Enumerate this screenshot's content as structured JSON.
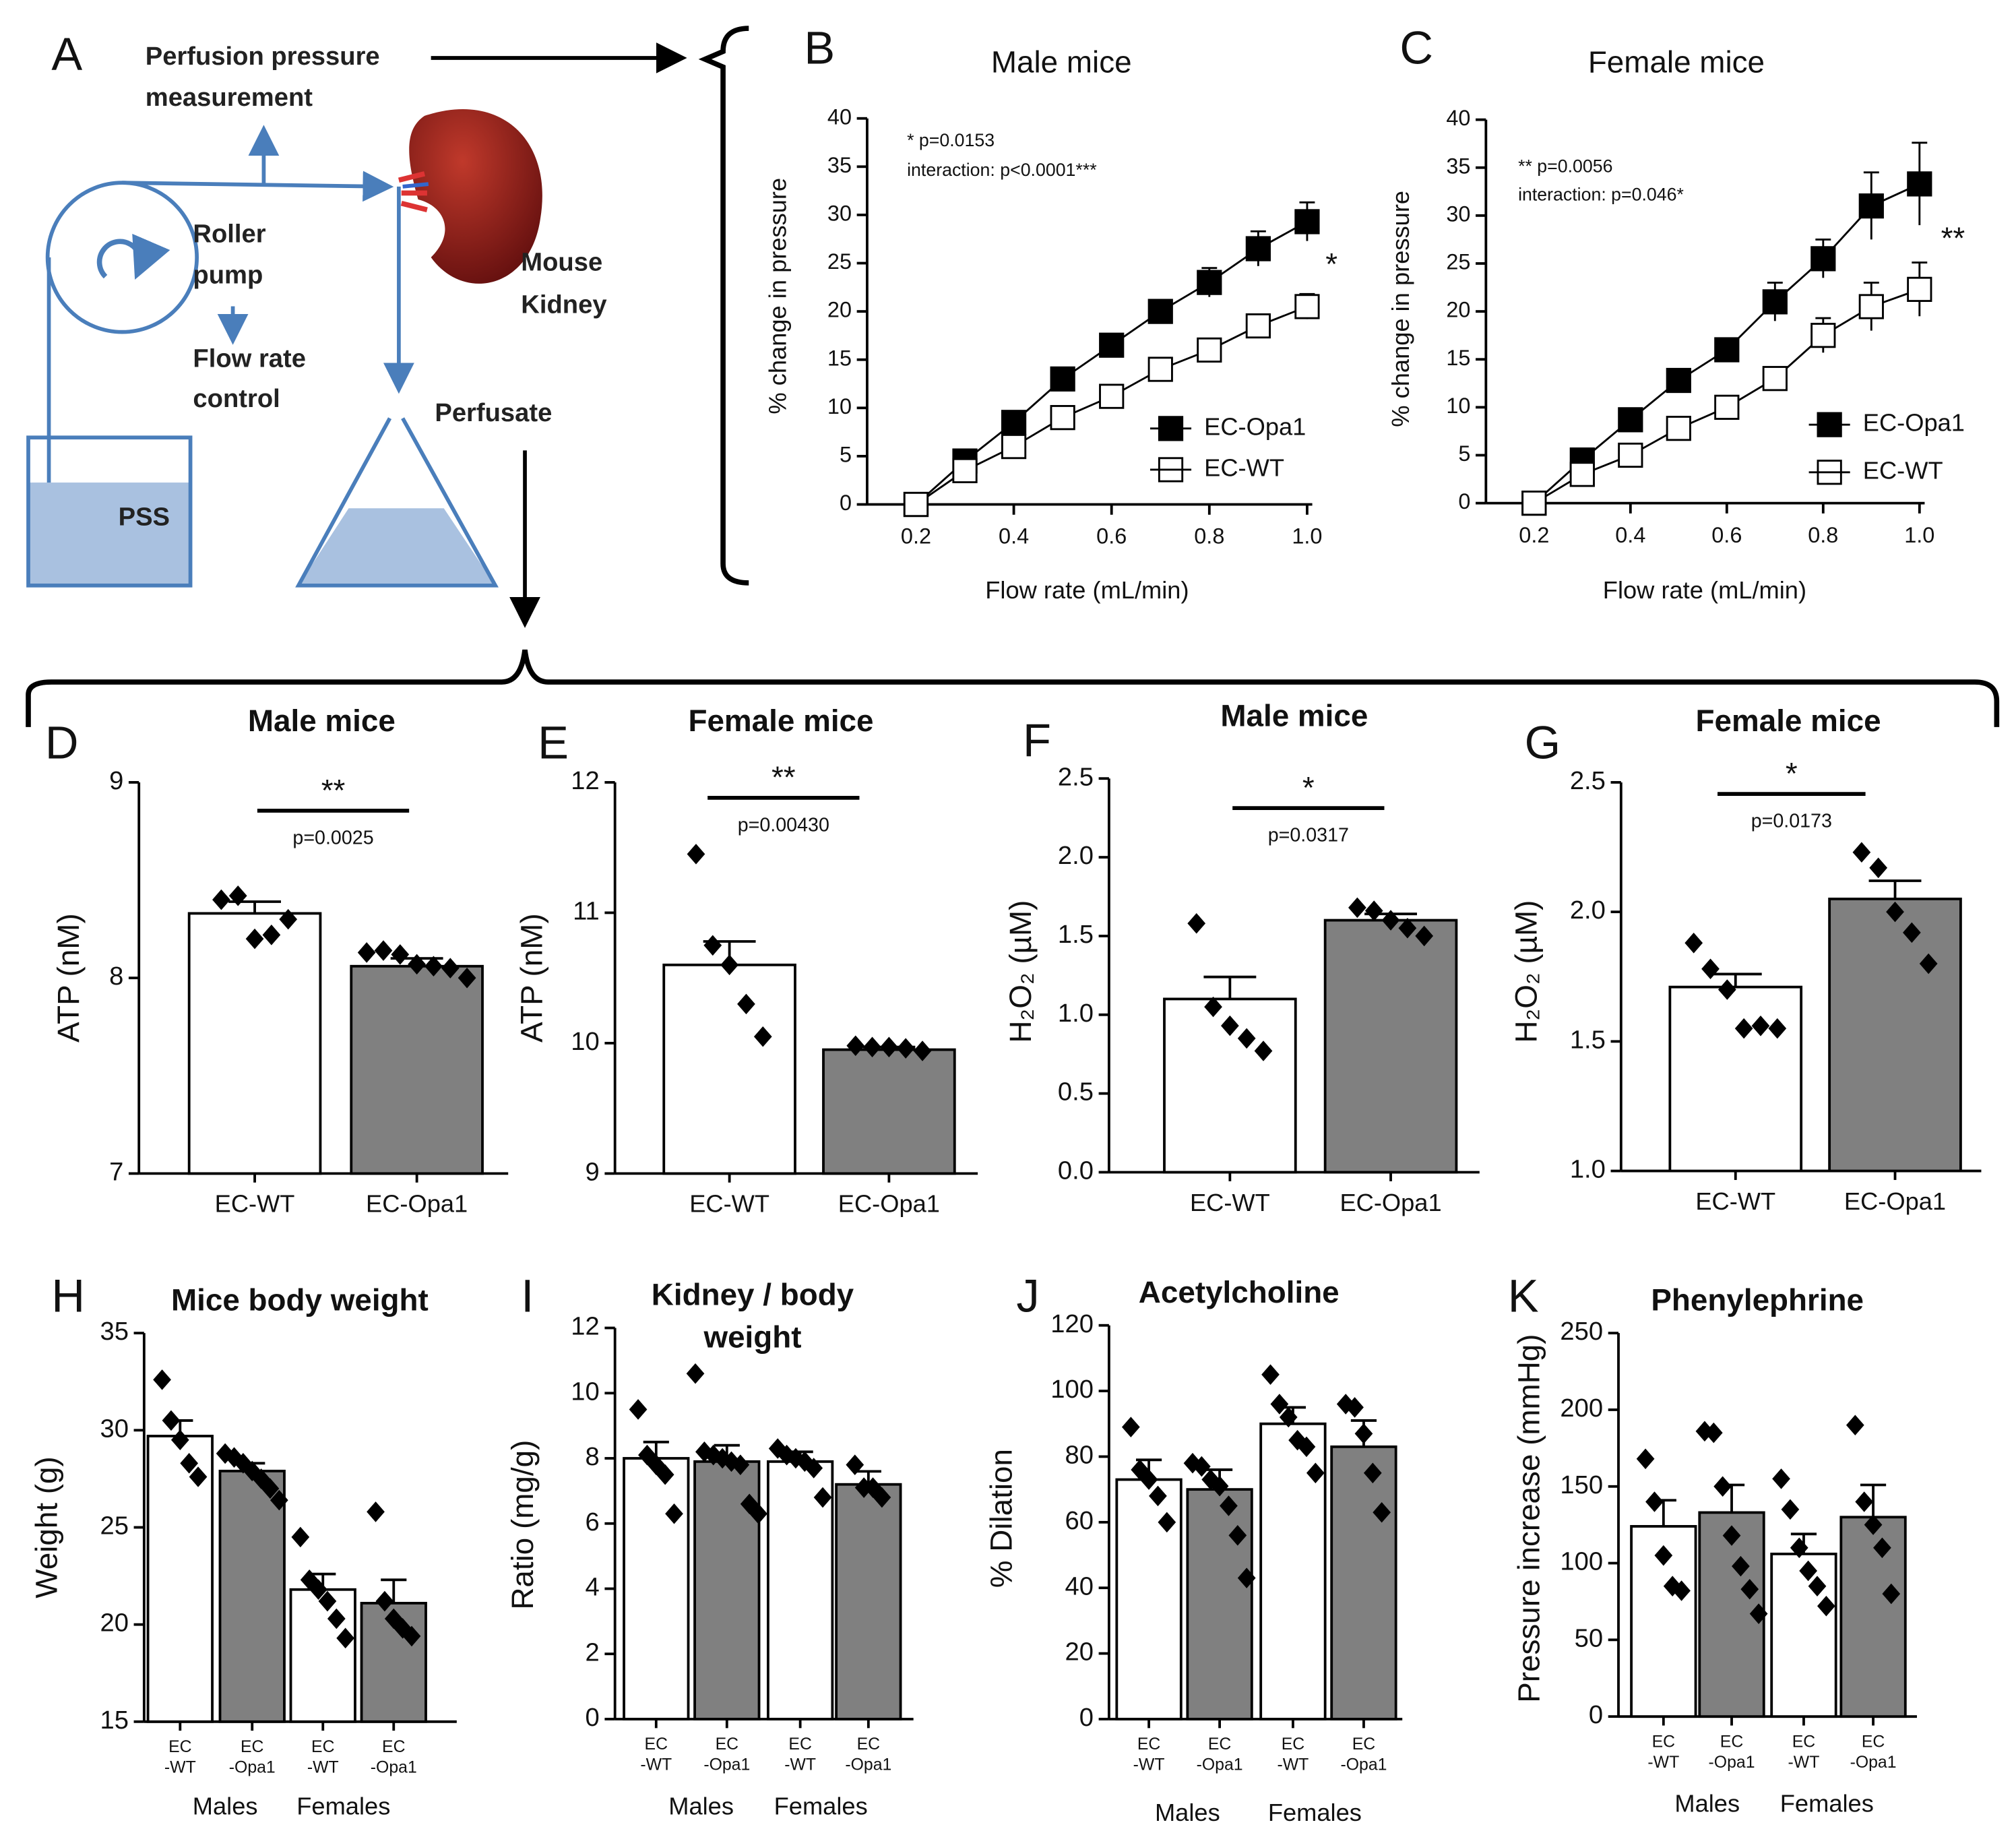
{
  "diagram": {
    "panel": "A",
    "pressure": [
      "Perfusion pressure",
      "measurement"
    ],
    "pump": [
      "Roller",
      "pump"
    ],
    "flow": [
      "Flow rate",
      "control"
    ],
    "kidney": [
      "Mouse",
      "Kidney"
    ],
    "perfusate": "Perfusate",
    "pss": "PSS"
  },
  "chart_data": [
    {
      "type": "line",
      "panel": "B",
      "title": "Male mice",
      "xlabel": "Flow rate (mL/min)",
      "ylabel": "% change in pressure",
      "x": [
        0.2,
        0.3,
        0.4,
        0.5,
        0.6,
        0.7,
        0.8,
        0.9,
        1.0
      ],
      "xlim": [
        0.1,
        1.0
      ],
      "xticks": [
        0.2,
        0.4,
        0.6,
        0.8,
        {
          "value": 1,
          "label": "1.0"
        }
      ],
      "ylim": [
        0,
        40
      ],
      "yticks": [
        0,
        5,
        10,
        15,
        20,
        25,
        30,
        35,
        40
      ],
      "series": [
        {
          "name": "EC-Opa1",
          "color": "#000000",
          "values": [
            0,
            4.5,
            8.5,
            13,
            16.5,
            20,
            23,
            26.5,
            29.3
          ],
          "errors": [
            0,
            0.8,
            0.8,
            0.8,
            1,
            1.2,
            1.5,
            1.8,
            2
          ]
        },
        {
          "name": "EC-WT",
          "color": "#ffffff",
          "values": [
            0,
            3.5,
            6,
            9,
            11.2,
            14,
            16,
            18.5,
            20.5
          ],
          "errors": [
            0,
            0.8,
            0.5,
            0.6,
            0.5,
            0.7,
            1,
            1,
            1.3
          ]
        }
      ],
      "annotations": [
        "* p=0.0153",
        "interaction: p<0.0001***"
      ],
      "mark": "*"
    },
    {
      "type": "line",
      "panel": "C",
      "title": "Female mice",
      "xlabel": "Flow rate (mL/min)",
      "ylabel": "% change in pressure",
      "x": [
        0.2,
        0.3,
        0.4,
        0.5,
        0.6,
        0.7,
        0.8,
        0.9,
        1.0
      ],
      "xlim": [
        0.1,
        1.0
      ],
      "xticks": [
        0.2,
        0.4,
        0.6,
        0.8,
        {
          "value": 1,
          "label": "1.0"
        }
      ],
      "ylim": [
        0,
        40
      ],
      "yticks": [
        0,
        5,
        10,
        15,
        20,
        25,
        30,
        35,
        40
      ],
      "series": [
        {
          "name": "EC-Opa1",
          "color": "#000000",
          "values": [
            0,
            4.5,
            8.7,
            12.8,
            16,
            21,
            25.5,
            31,
            33.3
          ],
          "errors": [
            0,
            0.8,
            0.7,
            0.7,
            0.8,
            2,
            2,
            3.5,
            4.3
          ]
        },
        {
          "name": "EC-WT",
          "color": "#ffffff",
          "values": [
            0,
            3,
            5,
            7.8,
            10,
            13,
            17.5,
            20.5,
            22.3
          ],
          "errors": [
            0,
            0.8,
            0.5,
            0.5,
            0.6,
            0.8,
            1.8,
            2.5,
            2.8
          ]
        }
      ],
      "annotations": [
        "** p=0.0056",
        "interaction: p=0.046*"
      ],
      "mark": "**"
    },
    {
      "type": "bar",
      "panel": "D",
      "title": "Male mice",
      "ylabel": "ATP (nM)",
      "categories": [
        "EC-WT",
        "EC-Opa1"
      ],
      "colors": [
        "#ffffff",
        "#808080"
      ],
      "values": [
        8.33,
        8.06
      ],
      "errors": [
        0.06,
        0.04
      ],
      "points": [
        [
          8.4,
          8.42,
          8.2,
          8.22,
          8.3
        ],
        [
          8.13,
          8.14,
          8.12,
          8.07,
          8.06,
          8.05,
          8.0
        ]
      ],
      "ylim": [
        7,
        9
      ],
      "yticks": [
        7,
        8,
        9
      ],
      "stars": "**",
      "p": "p=0.0025"
    },
    {
      "type": "bar",
      "panel": "E",
      "title": "Female mice",
      "ylabel": "ATP (nM)",
      "categories": [
        "EC-WT",
        "EC-Opa1"
      ],
      "colors": [
        "#ffffff",
        "#808080"
      ],
      "values": [
        10.6,
        9.95
      ],
      "errors": [
        0.18,
        0.02
      ],
      "points": [
        [
          11.45,
          10.75,
          10.6,
          10.3,
          10.05
        ],
        [
          9.98,
          9.97,
          9.97,
          9.96,
          9.94
        ]
      ],
      "ylim": [
        9,
        12
      ],
      "yticks": [
        9,
        10,
        11,
        12
      ],
      "stars": "**",
      "p": "p=0.00430"
    },
    {
      "type": "bar",
      "panel": "F",
      "title": "Male mice",
      "ylabel": "H₂O₂ (µM)",
      "categories": [
        "EC-WT",
        "EC-Opa1"
      ],
      "colors": [
        "#ffffff",
        "#808080"
      ],
      "values": [
        1.1,
        1.6
      ],
      "errors": [
        0.14,
        0.04
      ],
      "points": [
        [
          1.58,
          1.05,
          0.93,
          0.85,
          0.77
        ],
        [
          1.68,
          1.66,
          1.6,
          1.55,
          1.5
        ]
      ],
      "ylim": [
        0,
        2.5
      ],
      "yticks": [
        {
          "value": 0,
          "label": "0.0"
        },
        0.5,
        {
          "value": 1,
          "label": "1.0"
        },
        1.5,
        {
          "value": 2,
          "label": "2.0"
        },
        2.5
      ],
      "stars": "*",
      "p": "p=0.0317"
    },
    {
      "type": "bar",
      "panel": "G",
      "title": "Female mice",
      "ylabel": "H₂O₂ (µM)",
      "categories": [
        "EC-WT",
        "EC-Opa1"
      ],
      "colors": [
        "#ffffff",
        "#808080"
      ],
      "values": [
        1.71,
        2.05
      ],
      "errors": [
        0.05,
        0.07
      ],
      "points": [
        [
          1.88,
          1.78,
          1.7,
          1.55,
          1.56,
          1.55
        ],
        [
          2.23,
          2.17,
          2.0,
          1.92,
          1.8
        ]
      ],
      "ylim": [
        1,
        2.5
      ],
      "yticks": [
        {
          "value": 1,
          "label": "1.0"
        },
        1.5,
        {
          "value": 2,
          "label": "2.0"
        },
        2.5
      ],
      "stars": "*",
      "p": "p=0.0173"
    },
    {
      "type": "groupbar",
      "panel": "H",
      "title": "Mice body weight",
      "ylabel": "Weight (g)",
      "categories": [
        [
          "EC",
          "-WT"
        ],
        [
          "EC",
          "-Opa1"
        ],
        [
          "EC",
          "-WT"
        ],
        [
          "EC",
          "-Opa1"
        ]
      ],
      "groups": [
        "Males",
        "Females"
      ],
      "colors": [
        "#ffffff",
        "#808080",
        "#ffffff",
        "#808080"
      ],
      "values": [
        29.7,
        27.9,
        21.8,
        21.1
      ],
      "errors": [
        0.8,
        0.4,
        0.8,
        1.2
      ],
      "points": [
        [
          32.6,
          30.5,
          29.5,
          28.3,
          27.6
        ],
        [
          28.8,
          28.6,
          28.3,
          27.9,
          27.5,
          27.0,
          26.4
        ],
        [
          24.5,
          22.3,
          21.8,
          21.2,
          20.3,
          19.3
        ],
        [
          25.8,
          21.2,
          20.3,
          19.8,
          19.4
        ]
      ],
      "ylim": [
        15,
        35
      ],
      "yticks": [
        15,
        20,
        25,
        30,
        35
      ]
    },
    {
      "type": "groupbar",
      "panel": "I",
      "title": [
        "Kidney / body",
        "weight"
      ],
      "ylabel": "Ratio (mg/g)",
      "categories": [
        [
          "EC",
          "-WT"
        ],
        [
          "EC",
          "-Opa1"
        ],
        [
          "EC",
          "-WT"
        ],
        [
          "EC",
          "-Opa1"
        ]
      ],
      "groups": [
        "Males",
        "Females"
      ],
      "colors": [
        "#ffffff",
        "#808080",
        "#ffffff",
        "#808080"
      ],
      "values": [
        8.0,
        7.9,
        7.9,
        7.2
      ],
      "errors": [
        0.5,
        0.5,
        0.3,
        0.4
      ],
      "points": [
        [
          9.5,
          8.1,
          7.8,
          7.5,
          6.3
        ],
        [
          10.6,
          8.2,
          8.1,
          8.0,
          7.9,
          7.8,
          6.6,
          6.3
        ],
        [
          8.3,
          8.1,
          8.0,
          7.9,
          7.7,
          6.8
        ],
        [
          7.8,
          7.1,
          7.1,
          6.8
        ]
      ],
      "ylim": [
        0,
        12
      ],
      "yticks": [
        0,
        2,
        4,
        6,
        8,
        10,
        12
      ]
    },
    {
      "type": "groupbar",
      "panel": "J",
      "title": "Acetylcholine",
      "ylabel": "% Dilation",
      "categories": [
        [
          "EC",
          "-WT"
        ],
        [
          "EC",
          "-Opa1"
        ],
        [
          "EC",
          "-WT"
        ],
        [
          "EC",
          "-Opa1"
        ]
      ],
      "groups": [
        "Males",
        "Females"
      ],
      "colors": [
        "#ffffff",
        "#808080",
        "#ffffff",
        "#808080"
      ],
      "values": [
        73,
        70,
        90,
        83
      ],
      "errors": [
        6,
        6,
        5,
        8
      ],
      "points": [
        [
          89,
          76,
          73,
          68,
          60
        ],
        [
          78,
          77,
          73,
          71,
          65,
          56,
          43
        ],
        [
          105,
          96,
          92,
          85,
          83,
          75
        ],
        [
          96,
          95,
          87,
          75,
          63
        ]
      ],
      "ylim": [
        0,
        120
      ],
      "yticks": [
        0,
        20,
        40,
        60,
        80,
        100,
        120
      ]
    },
    {
      "type": "groupbar",
      "panel": "K",
      "title": "Phenylephrine",
      "ylabel": "Pressure increase (mmHg)",
      "categories": [
        [
          "EC",
          "-WT"
        ],
        [
          "EC",
          "-Opa1"
        ],
        [
          "EC",
          "-WT"
        ],
        [
          "EC",
          "-Opa1"
        ]
      ],
      "groups": [
        "Males",
        "Females"
      ],
      "colors": [
        "#ffffff",
        "#808080",
        "#ffffff",
        "#808080"
      ],
      "values": [
        124,
        133,
        106,
        130
      ],
      "errors": [
        17,
        18,
        13,
        21
      ],
      "points": [
        [
          168,
          140,
          105,
          85,
          82
        ],
        [
          186,
          185,
          150,
          118,
          98,
          83,
          67
        ],
        [
          155,
          135,
          110,
          95,
          85,
          72
        ],
        [
          190,
          140,
          125,
          110,
          80
        ]
      ],
      "ylim": [
        0,
        250
      ],
      "yticks": [
        0,
        50,
        100,
        150,
        200,
        250
      ]
    }
  ]
}
